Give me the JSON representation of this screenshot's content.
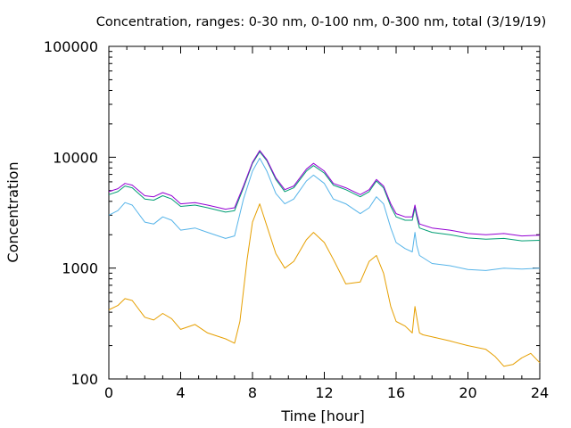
{
  "chart_data": {
    "type": "line",
    "title": "Concentration, ranges: 0-30 nm, 0-100 nm, 0-300 nm, total (3/19/19)",
    "xlabel": "Time [hour]",
    "ylabel": "Concentration",
    "xlim": [
      0,
      24
    ],
    "ylim": [
      100,
      100000
    ],
    "yscale": "log",
    "grid": false,
    "legend": "none",
    "x_ticks": [
      0,
      4,
      8,
      12,
      16,
      20,
      24
    ],
    "x_tick_labels": [
      "0",
      "4",
      "8",
      "12",
      "16",
      "20",
      "24"
    ],
    "y_ticks": [
      100,
      1000,
      10000,
      100000
    ],
    "y_tick_labels": [
      "100",
      "1000",
      "10000",
      "100000"
    ],
    "series": [
      {
        "color": "#9400d3",
        "x": [
          0,
          0.5,
          0.9,
          1.3,
          2,
          2.5,
          3,
          3.5,
          4,
          4.8,
          5.5,
          6.5,
          7,
          7.5,
          8,
          8.4,
          8.8,
          9.3,
          9.8,
          10.3,
          11,
          11.4,
          12,
          12.5,
          13.2,
          14,
          14.5,
          14.9,
          15.3,
          15.7,
          16,
          16.5,
          16.9,
          17.05,
          17.15,
          17.3,
          18,
          19,
          20,
          21,
          22,
          23,
          24
        ],
        "y": [
          4900,
          5200,
          5800,
          5600,
          4500,
          4400,
          4800,
          4500,
          3800,
          3900,
          3700,
          3400,
          3500,
          5500,
          9000,
          11500,
          9500,
          6500,
          5100,
          5500,
          7800,
          8800,
          7500,
          5800,
          5300,
          4600,
          5100,
          6300,
          5500,
          3800,
          3100,
          2900,
          2900,
          3700,
          3100,
          2500,
          2300,
          2200,
          2050,
          2000,
          2050,
          1950,
          1980
        ]
      },
      {
        "color": "#009e73",
        "x": [
          0,
          0.5,
          0.9,
          1.3,
          2,
          2.5,
          3,
          3.5,
          4,
          4.8,
          5.5,
          6.5,
          7,
          7.5,
          8,
          8.4,
          8.8,
          9.3,
          9.8,
          10.3,
          11,
          11.4,
          12,
          12.5,
          13.2,
          14,
          14.5,
          14.9,
          15.3,
          15.7,
          16,
          16.5,
          16.9,
          17.05,
          17.15,
          17.3,
          18,
          19,
          20,
          21,
          22,
          23,
          24
        ],
        "y": [
          4600,
          4900,
          5500,
          5300,
          4200,
          4100,
          4500,
          4200,
          3600,
          3700,
          3500,
          3200,
          3300,
          5300,
          8800,
          11200,
          9300,
          6300,
          4900,
          5300,
          7500,
          8400,
          7200,
          5600,
          5100,
          4400,
          4900,
          6100,
          5300,
          3600,
          2900,
          2700,
          2700,
          3500,
          2900,
          2300,
          2100,
          2000,
          1870,
          1820,
          1850,
          1760,
          1780
        ]
      },
      {
        "color": "#56b4e9",
        "x": [
          0,
          0.5,
          0.9,
          1.3,
          2,
          2.5,
          3,
          3.5,
          4,
          4.8,
          5.5,
          6.5,
          7,
          7.5,
          8,
          8.4,
          8.8,
          9.3,
          9.8,
          10.3,
          11,
          11.4,
          12,
          12.5,
          13.2,
          14,
          14.5,
          14.9,
          15.3,
          15.7,
          16,
          16.5,
          16.9,
          17.05,
          17.15,
          17.3,
          18,
          19,
          20,
          21,
          22,
          23,
          24
        ],
        "y": [
          3000,
          3300,
          3900,
          3700,
          2600,
          2500,
          2900,
          2700,
          2200,
          2300,
          2100,
          1850,
          1950,
          4200,
          7500,
          9800,
          7500,
          4700,
          3800,
          4200,
          6100,
          6900,
          5800,
          4200,
          3800,
          3100,
          3500,
          4400,
          3800,
          2300,
          1700,
          1500,
          1400,
          2100,
          1600,
          1300,
          1100,
          1050,
          970,
          950,
          1000,
          980,
          1000
        ]
      },
      {
        "color": "#e69f00",
        "x": [
          0,
          0.5,
          0.9,
          1.3,
          2,
          2.5,
          3,
          3.5,
          4,
          4.8,
          5.5,
          6.5,
          7,
          7.3,
          7.7,
          8,
          8.4,
          8.8,
          9.3,
          9.8,
          10.3,
          11,
          11.4,
          12,
          12.5,
          13.2,
          14,
          14.5,
          14.9,
          15.3,
          15.7,
          16,
          16.5,
          16.9,
          17.05,
          17.15,
          17.3,
          17.5,
          18,
          19,
          20,
          21,
          21.5,
          22,
          22.5,
          23,
          23.5,
          24
        ],
        "y": [
          420,
          460,
          530,
          510,
          360,
          340,
          390,
          350,
          280,
          310,
          260,
          230,
          210,
          330,
          1200,
          2600,
          3800,
          2400,
          1350,
          1000,
          1150,
          1800,
          2100,
          1700,
          1200,
          720,
          750,
          1150,
          1300,
          900,
          450,
          330,
          300,
          260,
          450,
          360,
          260,
          250,
          240,
          220,
          200,
          185,
          160,
          130,
          135,
          155,
          170,
          140
        ]
      }
    ]
  }
}
